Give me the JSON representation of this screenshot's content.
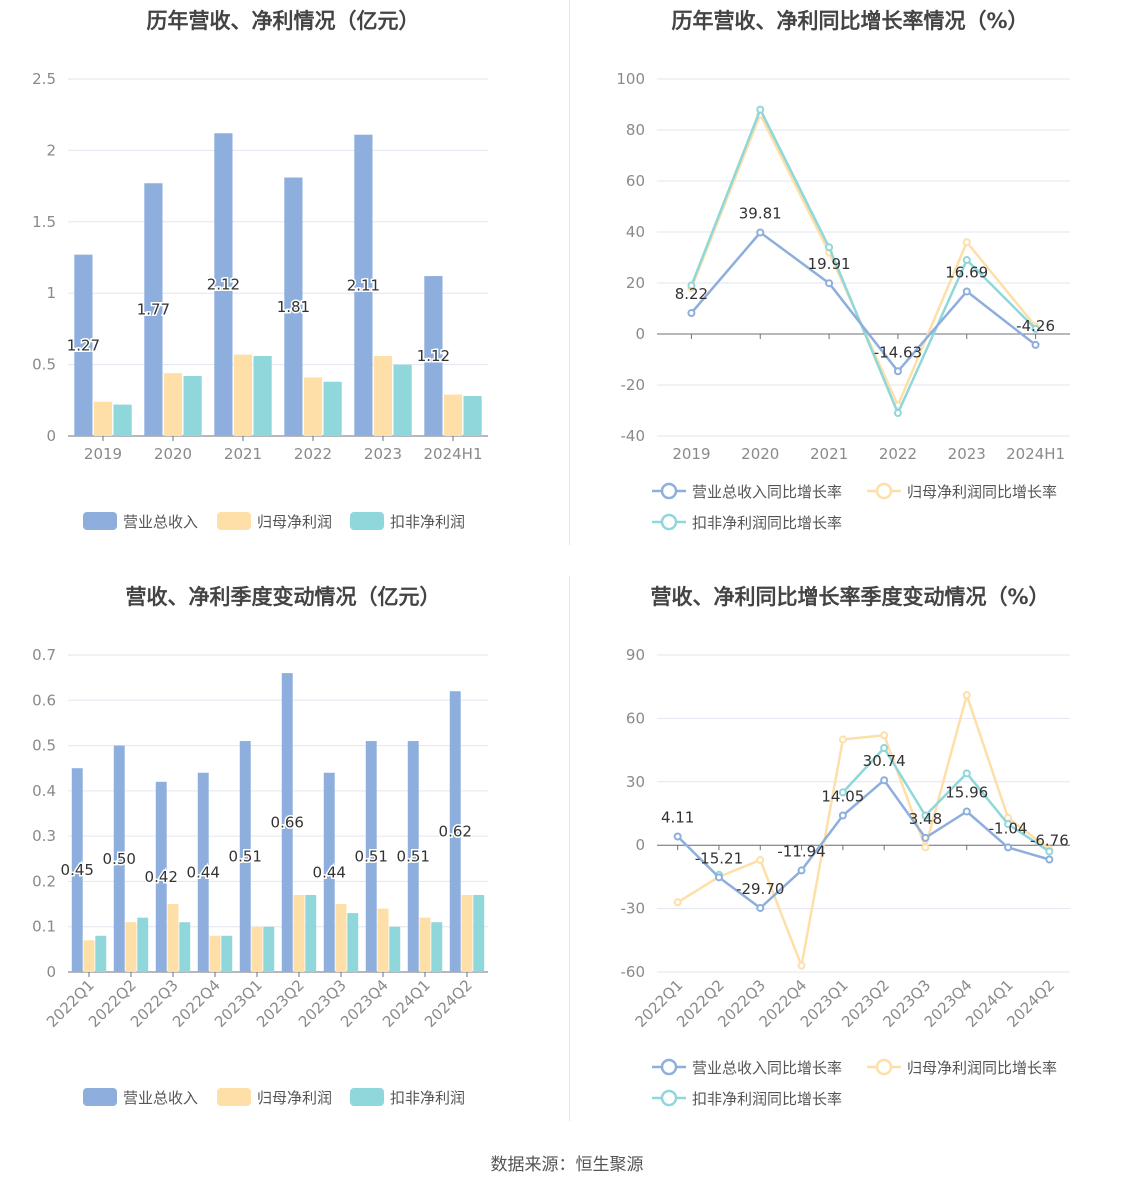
{
  "colors": {
    "revenue": "#8eaedd",
    "net_profit": "#fedfa8",
    "deducted_profit": "#8fd7da",
    "revenue_legend_line": "#8eaedd",
    "net_legend_line": "#fedfa8",
    "deducted_legend_line": "#8fd7da",
    "grid": "#e3e6ef",
    "axis_text": "#8a8a8a",
    "title": "#444444"
  },
  "footer": {
    "label": "数据来源：",
    "source": "恒生聚源"
  },
  "chart_data": [
    {
      "id": "annual_bars",
      "type": "bar",
      "title": "历年营收、净利情况（亿元）",
      "categories": [
        "2019",
        "2020",
        "2021",
        "2022",
        "2023",
        "2024H1"
      ],
      "ylim": [
        0,
        2.5
      ],
      "yticks": [
        "0",
        "0.5",
        "1",
        "1.5",
        "2",
        "2.5"
      ],
      "ytick_values": [
        0,
        0.5,
        1,
        1.5,
        2,
        2.5
      ],
      "grid": true,
      "legend_position": "bottom",
      "series": [
        {
          "name": "营业总收入",
          "values": [
            1.27,
            1.77,
            2.12,
            1.81,
            2.11,
            1.12
          ],
          "labels": [
            "1.27",
            "1.77",
            "2.12",
            "1.81",
            "2.11",
            "1.12"
          ]
        },
        {
          "name": "归母净利润",
          "values": [
            0.24,
            0.44,
            0.57,
            0.41,
            0.56,
            0.29
          ]
        },
        {
          "name": "扣非净利润",
          "values": [
            0.22,
            0.42,
            0.56,
            0.38,
            0.5,
            0.28
          ]
        }
      ]
    },
    {
      "id": "annual_growth",
      "type": "line",
      "title": "历年营收、净利同比增长率情况（%）",
      "categories": [
        "2019",
        "2020",
        "2021",
        "2022",
        "2023",
        "2024H1"
      ],
      "ylim": [
        -40,
        100
      ],
      "yticks": [
        "-40",
        "-20",
        "0",
        "20",
        "40",
        "60",
        "80",
        "100"
      ],
      "ytick_values": [
        -40,
        -20,
        0,
        20,
        40,
        60,
        80,
        100
      ],
      "grid": true,
      "legend_position": "bottom",
      "series": [
        {
          "name": "营业总收入同比增长率",
          "values": [
            8.22,
            39.81,
            19.91,
            -14.63,
            16.69,
            -4.26
          ],
          "labels": [
            "8.22",
            "39.81",
            "19.91",
            "-14.63",
            "16.69",
            "-4.26"
          ]
        },
        {
          "name": "归母净利润同比增长率",
          "values": [
            18,
            86,
            32,
            -28,
            36,
            3
          ]
        },
        {
          "name": "扣非净利润同比增长率",
          "values": [
            19,
            88,
            34,
            -31,
            29,
            2
          ]
        }
      ]
    },
    {
      "id": "quarterly_bars",
      "type": "bar",
      "title": "营收、净利季度变动情况（亿元）",
      "categories": [
        "2022Q1",
        "2022Q2",
        "2022Q3",
        "2022Q4",
        "2023Q1",
        "2023Q2",
        "2023Q3",
        "2023Q4",
        "2024Q1",
        "2024Q2"
      ],
      "ylim": [
        0,
        0.7
      ],
      "yticks": [
        "0",
        "0.1",
        "0.2",
        "0.3",
        "0.4",
        "0.5",
        "0.6",
        "0.7"
      ],
      "ytick_values": [
        0,
        0.1,
        0.2,
        0.3,
        0.4,
        0.5,
        0.6,
        0.7
      ],
      "grid": true,
      "legend_position": "bottom",
      "series": [
        {
          "name": "营业总收入",
          "values": [
            0.45,
            0.5,
            0.42,
            0.44,
            0.51,
            0.66,
            0.44,
            0.51,
            0.51,
            0.62
          ],
          "labels": [
            "0.45",
            "0.50",
            "0.42",
            "0.44",
            "0.51",
            "0.66",
            "0.44",
            "0.51",
            "0.51",
            "0.62"
          ]
        },
        {
          "name": "归母净利润",
          "values": [
            0.07,
            0.11,
            0.15,
            0.08,
            0.1,
            0.17,
            0.15,
            0.14,
            0.12,
            0.17
          ]
        },
        {
          "name": "扣非净利润",
          "values": [
            0.08,
            0.12,
            0.11,
            0.08,
            0.1,
            0.17,
            0.13,
            0.1,
            0.11,
            0.17
          ]
        }
      ]
    },
    {
      "id": "quarterly_growth",
      "type": "line",
      "title": "营收、净利同比增长率季度变动情况（%）",
      "categories": [
        "2022Q1",
        "2022Q2",
        "2022Q3",
        "2022Q4",
        "2023Q1",
        "2023Q2",
        "2023Q3",
        "2023Q4",
        "2024Q1",
        "2024Q2"
      ],
      "ylim": [
        -60,
        90
      ],
      "yticks": [
        "-60",
        "-30",
        "0",
        "30",
        "60",
        "90"
      ],
      "ytick_values": [
        -60,
        -30,
        0,
        30,
        60,
        90
      ],
      "grid": true,
      "legend_position": "bottom",
      "series": [
        {
          "name": "营业总收入同比增长率",
          "values": [
            4.11,
            -15.21,
            -29.7,
            -11.94,
            14.05,
            30.74,
            3.48,
            15.96,
            -1.04,
            -6.76
          ],
          "labels": [
            "4.11",
            "-15.21",
            "-29.70",
            "-11.94",
            "14.05",
            "30.74",
            "3.48",
            "15.96",
            "-1.04",
            "-6.76"
          ]
        },
        {
          "name": "归母净利润同比增长率",
          "values": [
            -27,
            -15,
            -7,
            -57,
            50,
            52,
            -1,
            71,
            13,
            -2
          ]
        },
        {
          "name": "扣非净利润同比增长率",
          "values": [
            null,
            -14,
            null,
            null,
            25,
            46,
            14,
            34,
            10,
            -3
          ]
        }
      ]
    }
  ]
}
